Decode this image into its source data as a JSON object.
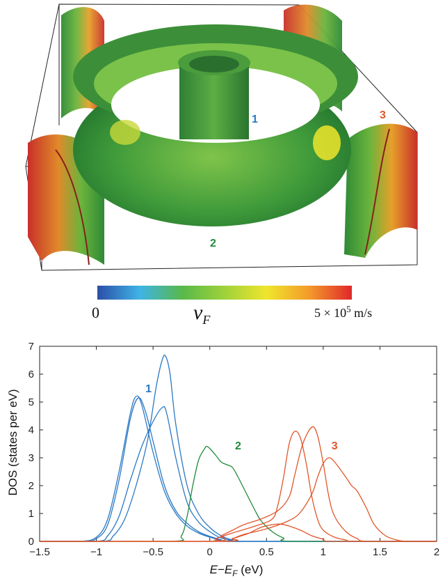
{
  "fermi_surface": {
    "band_labels": [
      {
        "text": "1",
        "color": "#2a78c4"
      },
      {
        "text": "2",
        "color": "#1f8a3a"
      },
      {
        "text": "3",
        "color": "#e0562a"
      }
    ]
  },
  "colorbar": {
    "min_label": "0",
    "symbol": "v",
    "symbol_subscript": "F",
    "max_label_prefix": "5 × 10",
    "max_label_exp": "5",
    "max_label_unit": "m/s",
    "gradient_colors": [
      "#2b4ea8",
      "#3fb4e6",
      "#58b84a",
      "#9fd23a",
      "#f0e52c",
      "#f39a2a",
      "#e0282a"
    ]
  },
  "chart_data": {
    "type": "line",
    "title": "",
    "xlabel_main": "E−E",
    "xlabel_sub": "F",
    "xlabel_unit": " (eV)",
    "ylabel": "DOS (states per eV)",
    "xlim": [
      -1.5,
      2
    ],
    "ylim": [
      0,
      7
    ],
    "xticks": [
      -1.5,
      -1,
      -0.5,
      0,
      0.5,
      1,
      1.5,
      2
    ],
    "xtick_labels": [
      "−1.5",
      "−1",
      "−0.5",
      "0",
      "0.5",
      "1",
      "1.5",
      "2"
    ],
    "yticks": [
      0,
      1,
      2,
      3,
      4,
      5,
      6,
      7
    ],
    "ytick_labels": [
      "0",
      "1",
      "2",
      "3",
      "4",
      "5",
      "6",
      "7"
    ],
    "grid": false,
    "series": [
      {
        "group": "1",
        "color": "#2a78c4",
        "points": [
          [
            -1.5,
            0
          ],
          [
            -1.15,
            0
          ],
          [
            -1.0,
            0.15
          ],
          [
            -0.9,
            0.8
          ],
          [
            -0.8,
            2.5
          ],
          [
            -0.7,
            4.6
          ],
          [
            -0.65,
            5.2
          ],
          [
            -0.6,
            4.9
          ],
          [
            -0.5,
            3.2
          ],
          [
            -0.4,
            1.8
          ],
          [
            -0.3,
            1.0
          ],
          [
            -0.2,
            0.55
          ],
          [
            -0.1,
            0.3
          ],
          [
            0,
            0.15
          ],
          [
            0.1,
            0.05
          ],
          [
            0.2,
            0
          ],
          [
            2,
            0
          ]
        ]
      },
      {
        "group": "1",
        "color": "#2a78c4",
        "points": [
          [
            -1.5,
            0
          ],
          [
            -1.12,
            0
          ],
          [
            -1.0,
            0.1
          ],
          [
            -0.9,
            0.6
          ],
          [
            -0.8,
            2.2
          ],
          [
            -0.7,
            4.4
          ],
          [
            -0.63,
            5.15
          ],
          [
            -0.57,
            4.7
          ],
          [
            -0.5,
            3.6
          ],
          [
            -0.4,
            2.0
          ],
          [
            -0.3,
            1.1
          ],
          [
            -0.2,
            0.65
          ],
          [
            -0.1,
            0.35
          ],
          [
            0,
            0.18
          ],
          [
            0.1,
            0.06
          ],
          [
            0.2,
            0
          ],
          [
            2,
            0
          ]
        ]
      },
      {
        "group": "1",
        "color": "#2a78c4",
        "points": [
          [
            -1.5,
            0
          ],
          [
            -1.0,
            0
          ],
          [
            -0.9,
            0.2
          ],
          [
            -0.8,
            0.9
          ],
          [
            -0.7,
            2.2
          ],
          [
            -0.6,
            3.4
          ],
          [
            -0.5,
            4.3
          ],
          [
            -0.42,
            4.8
          ],
          [
            -0.38,
            4.6
          ],
          [
            -0.3,
            3.0
          ],
          [
            -0.2,
            1.4
          ],
          [
            -0.1,
            0.7
          ],
          [
            0,
            0.35
          ],
          [
            0.1,
            0.12
          ],
          [
            0.2,
            0.03
          ],
          [
            0.25,
            0
          ],
          [
            2,
            0
          ]
        ]
      },
      {
        "group": "1",
        "color": "#2a78c4",
        "points": [
          [
            -1.5,
            0
          ],
          [
            -0.95,
            0
          ],
          [
            -0.85,
            0.2
          ],
          [
            -0.75,
            0.8
          ],
          [
            -0.65,
            2.0
          ],
          [
            -0.55,
            3.6
          ],
          [
            -0.47,
            5.6
          ],
          [
            -0.42,
            6.5
          ],
          [
            -0.39,
            6.65
          ],
          [
            -0.35,
            6.0
          ],
          [
            -0.3,
            4.2
          ],
          [
            -0.2,
            2.0
          ],
          [
            -0.1,
            1.0
          ],
          [
            0,
            0.5
          ],
          [
            0.1,
            0.2
          ],
          [
            0.2,
            0.05
          ],
          [
            0.3,
            0
          ],
          [
            2,
            0
          ]
        ]
      },
      {
        "group": "2",
        "color": "#1f8a3a",
        "points": [
          [
            -1.5,
            0
          ],
          [
            -0.35,
            0
          ],
          [
            -0.25,
            0.2
          ],
          [
            -0.2,
            0.9
          ],
          [
            -0.15,
            2.0
          ],
          [
            -0.1,
            2.9
          ],
          [
            -0.05,
            3.3
          ],
          [
            -0.02,
            3.4
          ],
          [
            0.05,
            3.1
          ],
          [
            0.1,
            2.85
          ],
          [
            0.15,
            2.75
          ],
          [
            0.2,
            2.65
          ],
          [
            0.25,
            2.3
          ],
          [
            0.3,
            1.9
          ],
          [
            0.35,
            1.5
          ],
          [
            0.4,
            1.1
          ],
          [
            0.45,
            0.75
          ],
          [
            0.55,
            0.35
          ],
          [
            0.65,
            0.12
          ],
          [
            0.75,
            0
          ],
          [
            2,
            0
          ]
        ]
      },
      {
        "group": "3",
        "color": "#e0562a",
        "points": [
          [
            -1.5,
            0
          ],
          [
            -0.05,
            0
          ],
          [
            0.05,
            0.1
          ],
          [
            0.2,
            0.3
          ],
          [
            0.4,
            0.55
          ],
          [
            0.55,
            0.8
          ],
          [
            0.6,
            1.3
          ],
          [
            0.65,
            2.3
          ],
          [
            0.7,
            3.5
          ],
          [
            0.75,
            3.95
          ],
          [
            0.8,
            3.7
          ],
          [
            0.85,
            2.8
          ],
          [
            0.9,
            1.6
          ],
          [
            0.95,
            0.8
          ],
          [
            1.0,
            0.4
          ],
          [
            1.1,
            0.15
          ],
          [
            1.2,
            0.05
          ],
          [
            1.3,
            0
          ],
          [
            2,
            0
          ]
        ]
      },
      {
        "group": "3",
        "color": "#e0562a",
        "points": [
          [
            -1.5,
            0
          ],
          [
            0.0,
            0
          ],
          [
            0.1,
            0.2
          ],
          [
            0.2,
            0.4
          ],
          [
            0.3,
            0.6
          ],
          [
            0.45,
            0.8
          ],
          [
            0.6,
            1.1
          ],
          [
            0.7,
            1.6
          ],
          [
            0.75,
            2.4
          ],
          [
            0.82,
            3.5
          ],
          [
            0.9,
            4.1
          ],
          [
            0.95,
            3.8
          ],
          [
            1.0,
            2.8
          ],
          [
            1.05,
            1.6
          ],
          [
            1.1,
            0.9
          ],
          [
            1.2,
            0.35
          ],
          [
            1.3,
            0.1
          ],
          [
            1.4,
            0
          ],
          [
            2,
            0
          ]
        ]
      },
      {
        "group": "3",
        "color": "#e0562a",
        "points": [
          [
            -1.5,
            0
          ],
          [
            0.1,
            0
          ],
          [
            0.2,
            0.1
          ],
          [
            0.3,
            0.25
          ],
          [
            0.5,
            0.45
          ],
          [
            0.7,
            0.75
          ],
          [
            0.8,
            1.05
          ],
          [
            0.9,
            1.7
          ],
          [
            0.95,
            2.3
          ],
          [
            1.0,
            2.8
          ],
          [
            1.05,
            3.0
          ],
          [
            1.1,
            2.85
          ],
          [
            1.2,
            2.3
          ],
          [
            1.25,
            2.0
          ],
          [
            1.3,
            1.8
          ],
          [
            1.38,
            1.2
          ],
          [
            1.45,
            0.6
          ],
          [
            1.55,
            0.2
          ],
          [
            1.65,
            0.05
          ],
          [
            1.75,
            0
          ],
          [
            2,
            0
          ]
        ]
      },
      {
        "group": "3",
        "color": "#e0562a",
        "points": [
          [
            -1.5,
            0
          ],
          [
            0.1,
            0
          ],
          [
            0.2,
            0.1
          ],
          [
            0.28,
            0.2
          ],
          [
            0.35,
            0.3
          ],
          [
            0.45,
            0.5
          ],
          [
            0.55,
            0.6
          ],
          [
            0.62,
            0.62
          ],
          [
            0.7,
            0.55
          ],
          [
            0.8,
            0.4
          ],
          [
            0.9,
            0.2
          ],
          [
            1.0,
            0.08
          ],
          [
            1.1,
            0
          ],
          [
            2,
            0
          ]
        ]
      }
    ],
    "annotations": [
      {
        "text": "1",
        "x": -0.54,
        "y": 5.35,
        "color": "#2a78c4"
      },
      {
        "text": "2",
        "x": 0.25,
        "y": 3.3,
        "color": "#1f8a3a"
      },
      {
        "text": "3",
        "x": 1.1,
        "y": 3.3,
        "color": "#e0562a"
      }
    ]
  }
}
